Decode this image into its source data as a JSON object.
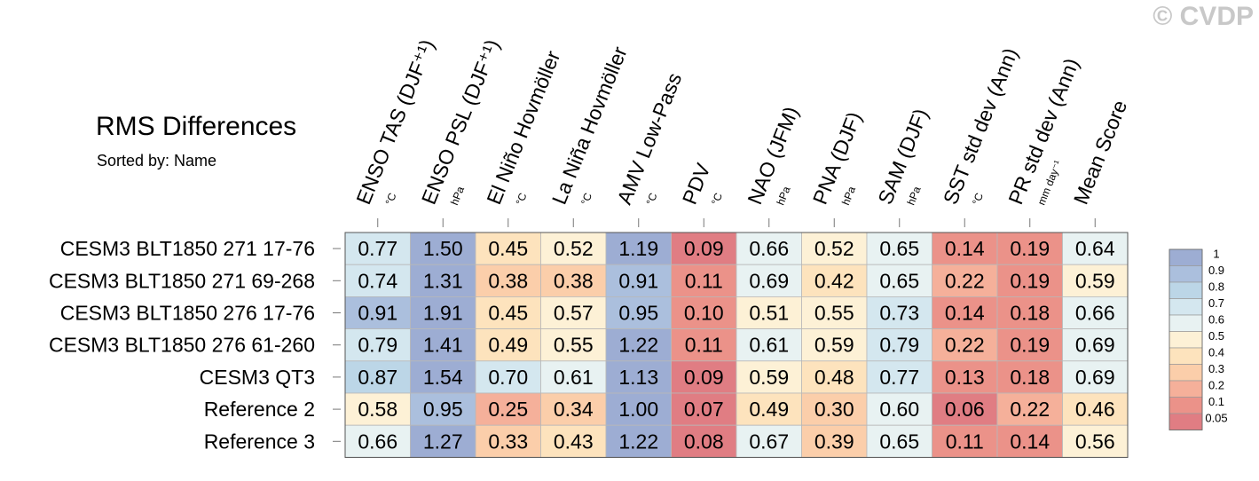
{
  "watermark": "© CVDP",
  "chart_data": {
    "type": "heatmap",
    "title": "RMS Differences",
    "subtitle": "Sorted by: Name",
    "columns": [
      {
        "label": "ENSO TAS (DJF⁺¹)",
        "unit": "°C"
      },
      {
        "label": "ENSO PSL (DJF⁺¹)",
        "unit": "hPa"
      },
      {
        "label": "El Niño Hovmöller",
        "unit": "°C"
      },
      {
        "label": "La Niña Hovmöller",
        "unit": "°C"
      },
      {
        "label": "AMV Low-Pass",
        "unit": "°C"
      },
      {
        "label": "PDV",
        "unit": "°C"
      },
      {
        "label": "NAO (JFM)",
        "unit": "hPa"
      },
      {
        "label": "PNA (DJF)",
        "unit": "hPa"
      },
      {
        "label": "SAM (DJF)",
        "unit": "hPa"
      },
      {
        "label": "SST std dev (Ann)",
        "unit": "°C"
      },
      {
        "label": "PR std dev (Ann)",
        "unit": "mm day⁻¹"
      },
      {
        "label": "Mean Score",
        "unit": ""
      }
    ],
    "rows": [
      "CESM3 BLT1850 271 17-76",
      "CESM3 BLT1850 271 69-268",
      "CESM3 BLT1850 276 17-76",
      "CESM3 BLT1850 276 61-260",
      "CESM3 QT3",
      "Reference 2",
      "Reference 3"
    ],
    "values": [
      [
        0.77,
        1.5,
        0.45,
        0.52,
        1.19,
        0.09,
        0.66,
        0.52,
        0.65,
        0.14,
        0.19,
        0.64
      ],
      [
        0.74,
        1.31,
        0.38,
        0.38,
        0.91,
        0.11,
        0.69,
        0.42,
        0.65,
        0.22,
        0.19,
        0.59
      ],
      [
        0.91,
        1.91,
        0.45,
        0.57,
        0.95,
        0.1,
        0.51,
        0.55,
        0.73,
        0.14,
        0.18,
        0.66
      ],
      [
        0.79,
        1.41,
        0.49,
        0.55,
        1.22,
        0.11,
        0.61,
        0.59,
        0.79,
        0.22,
        0.19,
        0.69
      ],
      [
        0.87,
        1.54,
        0.7,
        0.61,
        1.13,
        0.09,
        0.59,
        0.48,
        0.77,
        0.13,
        0.18,
        0.69
      ],
      [
        0.58,
        0.95,
        0.25,
        0.34,
        1.0,
        0.07,
        0.49,
        0.3,
        0.6,
        0.06,
        0.22,
        0.46
      ],
      [
        0.66,
        1.27,
        0.33,
        0.43,
        1.22,
        0.08,
        0.67,
        0.39,
        0.65,
        0.11,
        0.14,
        0.56
      ]
    ],
    "colorbar": {
      "levels": [
        "1",
        "0.9",
        "0.8",
        "0.7",
        "0.6",
        "0.5",
        "0.4",
        "0.3",
        "0.2",
        "0.1",
        "0.05"
      ],
      "colors": [
        "#9dadd3",
        "#abbfdd",
        "#bcd6e7",
        "#d4e7ef",
        "#e8f2f2",
        "#fdf1d6",
        "#fde3bd",
        "#fbceaa",
        "#f5b09a",
        "#eb9289",
        "#e07d83"
      ]
    }
  }
}
